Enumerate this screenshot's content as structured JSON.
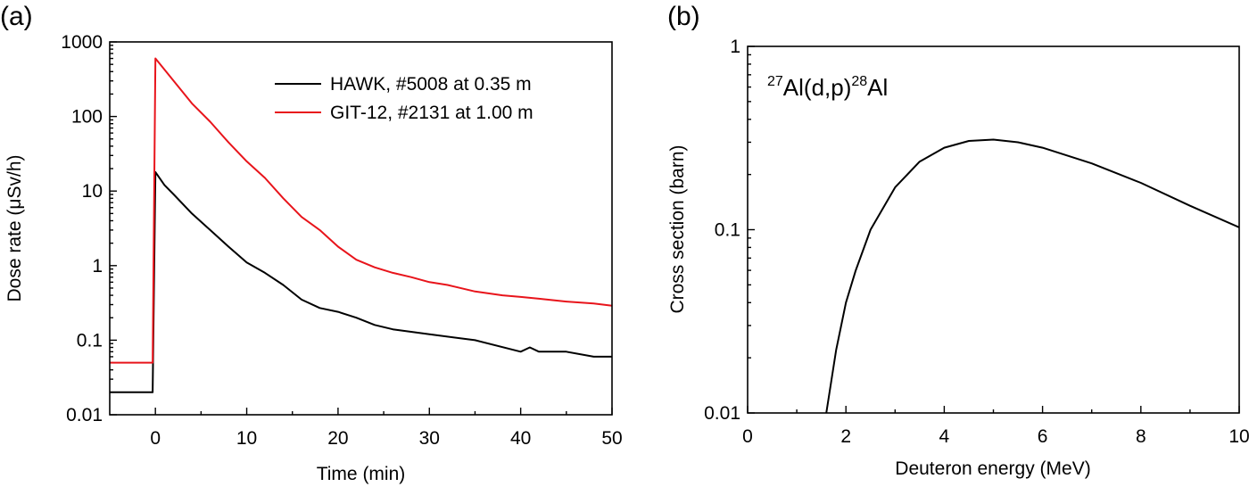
{
  "chart_data": [
    {
      "type": "line",
      "panel_label": "(a)",
      "xlabel": "Time (min)",
      "ylabel": "Dose rate (μSv/h)",
      "xlim": [
        -5,
        50
      ],
      "ylim": [
        0.01,
        1000
      ],
      "yscale": "log",
      "x_ticks": [
        0,
        10,
        20,
        30,
        40,
        50
      ],
      "x_tick_labels": [
        "0",
        "10",
        "20",
        "30",
        "40",
        "50"
      ],
      "y_ticks": [
        0.01,
        0.1,
        1,
        10,
        100,
        1000
      ],
      "y_tick_labels": [
        "0.01",
        "0.1",
        "1",
        "10",
        "100",
        "1000"
      ],
      "legend_position": "top-right",
      "series": [
        {
          "name": "HAWK, #5008 at 0.35 m",
          "color": "#000000",
          "x": [
            -5,
            -0.3,
            -0.3,
            0,
            1,
            2,
            4,
            6,
            8,
            10,
            12,
            14,
            16,
            18,
            20,
            22,
            24,
            26,
            30,
            35,
            40,
            41,
            42,
            45,
            48,
            50
          ],
          "y": [
            0.02,
            0.02,
            0.02,
            18,
            12,
            9,
            5,
            3,
            1.8,
            1.1,
            0.8,
            0.55,
            0.35,
            0.27,
            0.24,
            0.2,
            0.16,
            0.14,
            0.12,
            0.1,
            0.07,
            0.08,
            0.07,
            0.07,
            0.06,
            0.06
          ]
        },
        {
          "name": "GIT-12, #2131 at 1.00 m",
          "color": "#e8141b",
          "x": [
            -5,
            -0.3,
            -0.3,
            0,
            2,
            4,
            6,
            8,
            10,
            12,
            14,
            16,
            18,
            20,
            22,
            24,
            26,
            28,
            30,
            32,
            35,
            38,
            40,
            42,
            45,
            48,
            50
          ],
          "y": [
            0.05,
            0.05,
            0.05,
            600,
            300,
            150,
            85,
            45,
            25,
            15,
            8,
            4.5,
            3,
            1.8,
            1.2,
            0.95,
            0.8,
            0.7,
            0.6,
            0.55,
            0.45,
            0.4,
            0.38,
            0.36,
            0.33,
            0.31,
            0.29
          ]
        }
      ]
    },
    {
      "type": "line",
      "panel_label": "(b)",
      "xlabel": "Deuteron energy (MeV)",
      "ylabel": "Cross section (barn)",
      "xlim": [
        0,
        10
      ],
      "ylim": [
        0.01,
        1
      ],
      "yscale": "log",
      "x_ticks": [
        0,
        2,
        4,
        6,
        8,
        10
      ],
      "x_tick_labels": [
        "0",
        "2",
        "4",
        "6",
        "8",
        "10"
      ],
      "y_ticks": [
        0.01,
        0.1,
        1
      ],
      "y_tick_labels": [
        "0.01",
        "0.1",
        "1"
      ],
      "annotation": {
        "sup1": "27",
        "part1": "Al(d,p)",
        "sup2": "28",
        "part2": "Al"
      },
      "series": [
        {
          "color": "#000000",
          "x": [
            1.6,
            1.8,
            2.0,
            2.2,
            2.5,
            3.0,
            3.5,
            4.0,
            4.5,
            5.0,
            5.5,
            6.0,
            7.0,
            8.0,
            9.0,
            10.0
          ],
          "y": [
            0.01,
            0.022,
            0.04,
            0.06,
            0.1,
            0.17,
            0.235,
            0.28,
            0.305,
            0.31,
            0.3,
            0.28,
            0.23,
            0.18,
            0.135,
            0.103
          ]
        }
      ]
    }
  ]
}
